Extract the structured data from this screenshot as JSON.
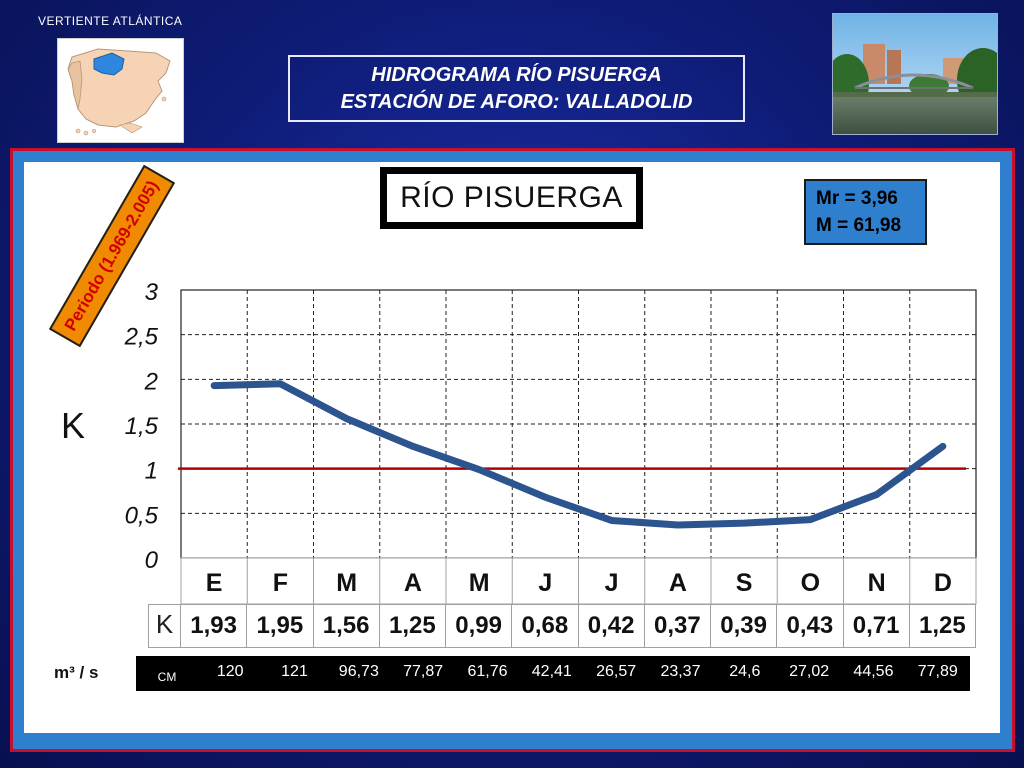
{
  "header": {
    "region_label": "VERTIENTE  ATLÁNTICA",
    "title_line1": "HIDROGRAMA  RÍO  PISUERGA",
    "title_line2": "ESTACIÓN DE AFORO:  VALLADOLID"
  },
  "chart": {
    "period_label": "Periodo (1.969-2.005)",
    "river_label": "RÍO PISUERGA",
    "stats_line1": "Mr = 3,96",
    "stats_line2": "M = 61,98",
    "y_axis_label": "K",
    "y_tick_labels": [
      "0",
      "0,5",
      "1",
      "1,5",
      "2",
      "2,5",
      "3"
    ],
    "month_labels": [
      "E",
      "F",
      "M",
      "A",
      "M",
      "J",
      "J",
      "A",
      "S",
      "O",
      "N",
      "D"
    ]
  },
  "table": {
    "k_head": "K",
    "k_values": [
      "1,93",
      "1,95",
      "1,56",
      "1,25",
      "0,99",
      "0,68",
      "0,42",
      "0,37",
      "0,39",
      "0,43",
      "0,71",
      "1,25"
    ],
    "unit_label": "m³ / s",
    "cm_head": "CM",
    "cm_values": [
      "120",
      "121",
      "96,73",
      "77,87",
      "61,76",
      "42,41",
      "26,57",
      "23,37",
      "24,6",
      "27,02",
      "44,56",
      "77,89"
    ]
  },
  "colors": {
    "background": "#0f1d7a",
    "frame_border": "#c8102e",
    "frame_fill": "#2f7fcf",
    "line_color": "#2c5590",
    "reference_line": "#b00000",
    "period_box": "#f08a00"
  },
  "chart_data": {
    "type": "line",
    "categories": [
      "E",
      "F",
      "M",
      "A",
      "M",
      "J",
      "J",
      "A",
      "S",
      "O",
      "N",
      "D"
    ],
    "values": [
      1.93,
      1.95,
      1.56,
      1.25,
      0.99,
      0.68,
      0.42,
      0.37,
      0.39,
      0.43,
      0.71,
      1.25
    ],
    "reference_line": 1,
    "ylabel": "K",
    "ylim": [
      0,
      3
    ],
    "yticks": [
      0,
      0.5,
      1,
      1.5,
      2,
      2.5,
      3
    ],
    "grid": true,
    "title": "RÍO PISUERGA"
  }
}
